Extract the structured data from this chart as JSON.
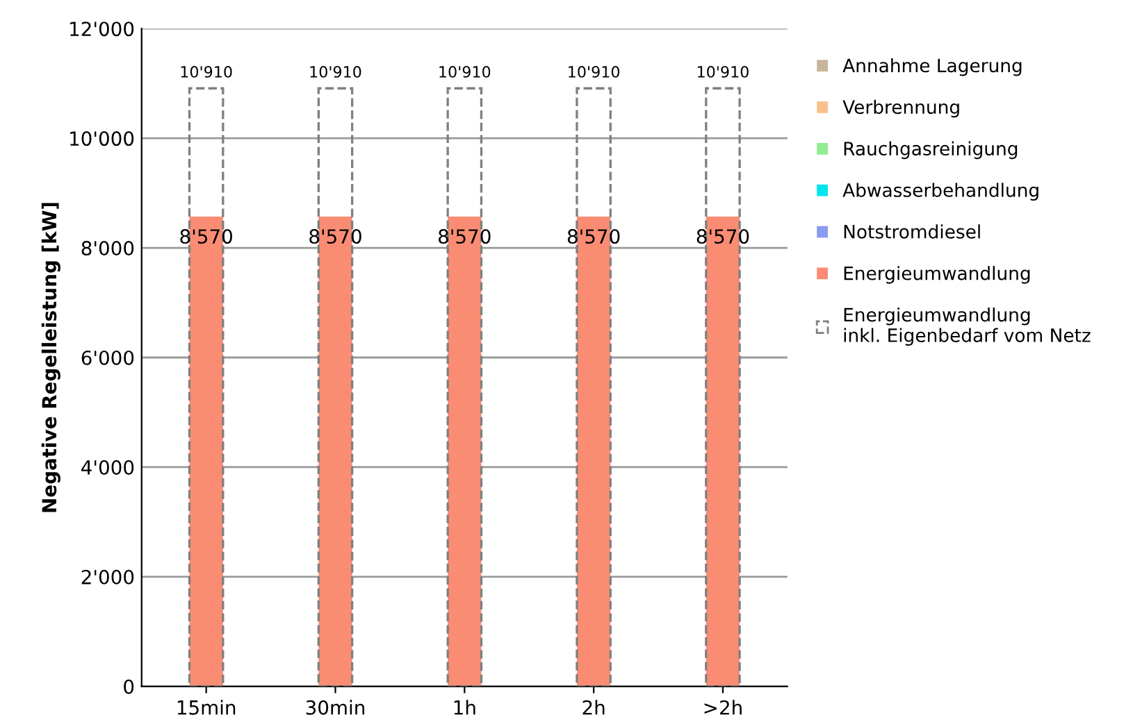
{
  "chart_data": {
    "type": "bar",
    "ylabel": "Negative Regelleistung [kW]",
    "categories": [
      "15min",
      "30min",
      "1h",
      "2h",
      ">2h"
    ],
    "series": [
      {
        "name": "Annahme Lagerung",
        "color": "#c8b49a",
        "values": [
          0,
          0,
          0,
          0,
          0
        ]
      },
      {
        "name": "Verbrennung",
        "color": "#f9c08c",
        "values": [
          0,
          0,
          0,
          0,
          0
        ]
      },
      {
        "name": "Rauchgasreinigung",
        "color": "#90ee90",
        "values": [
          0,
          0,
          0,
          0,
          0
        ]
      },
      {
        "name": "Abwasserbehandlung",
        "color": "#00e5ee",
        "values": [
          0,
          0,
          0,
          0,
          0
        ]
      },
      {
        "name": "Notstromdiesel",
        "color": "#8a9cf0",
        "values": [
          0,
          0,
          0,
          0,
          0
        ]
      },
      {
        "name": "Energieumwandlung",
        "color": "#fa8c74",
        "values": [
          8570,
          8570,
          8570,
          8570,
          8570
        ],
        "value_labels": [
          "8'570",
          "8'570",
          "8'570",
          "8'570",
          "8'570"
        ]
      },
      {
        "name": "Energieumwandlung\ninkl. Eigenbedarf vom Netz",
        "color": "#808080",
        "line_style": "dashed",
        "values": [
          10910,
          10910,
          10910,
          10910,
          10910
        ],
        "value_labels": [
          "10'910",
          "10'910",
          "10'910",
          "10'910",
          "10'910"
        ]
      }
    ],
    "ylim": [
      0,
      12000
    ],
    "yticks": [
      0,
      {
        "value": 2000,
        "label": "2'000"
      },
      {
        "value": 4000,
        "label": "4'000"
      },
      {
        "value": 6000,
        "label": "6'000"
      },
      {
        "value": 8000,
        "label": "8'000"
      },
      {
        "value": 10000,
        "label": "10'000"
      },
      {
        "value": 12000,
        "label": "12'000"
      }
    ],
    "grid": "y",
    "legend": "right"
  }
}
